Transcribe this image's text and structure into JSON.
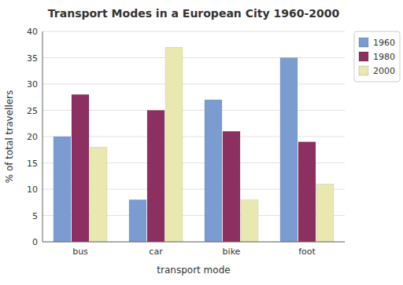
{
  "chart_data": {
    "type": "bar",
    "title": "Transport Modes in a European City 1960-2000",
    "xlabel": "transport mode",
    "ylabel": "% of total travellers",
    "categories": [
      "bus",
      "car",
      "bike",
      "foot"
    ],
    "series": [
      {
        "name": "1960",
        "color": "#7b9cd1",
        "values": [
          20,
          8,
          27,
          35
        ]
      },
      {
        "name": "1980",
        "color": "#8b3060",
        "values": [
          28,
          25,
          21,
          19
        ]
      },
      {
        "name": "2000",
        "color": "#e8e8b0",
        "values": [
          18,
          37,
          8,
          11
        ]
      }
    ],
    "ylim": [
      0,
      40
    ],
    "yticks": [
      0,
      5,
      10,
      15,
      20,
      25,
      30,
      35,
      40
    ],
    "grid": true,
    "legend": "upper right"
  }
}
